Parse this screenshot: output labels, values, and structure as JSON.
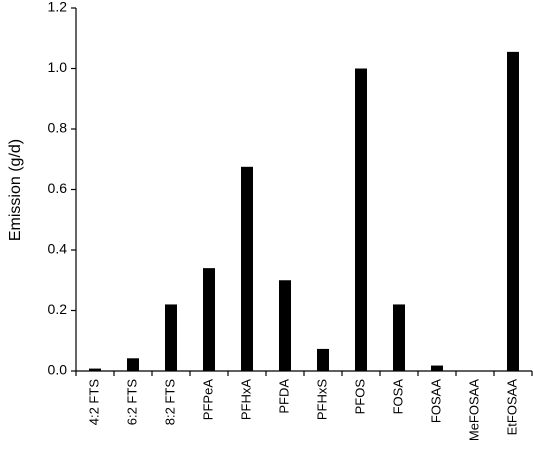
{
  "chart_data": {
    "type": "bar",
    "y_label": "Emission (g/d)",
    "categories": [
      "4:2 FTS",
      "6:2 FTS",
      "8:2 FTS",
      "PFPeA",
      "PFHxA",
      "PFDA",
      "PFHxS",
      "PFOS",
      "FOSA",
      "FOSAA",
      "MeFOSAA",
      "EtFOSAA"
    ],
    "values": [
      0.008,
      0.042,
      0.22,
      0.34,
      0.675,
      0.3,
      0.073,
      1.0,
      0.22,
      0.018,
      0,
      1.055
    ],
    "color": "#000000",
    "ylim": [
      0,
      1.2
    ],
    "yticks": [
      {
        "value": 0,
        "label": "0.0"
      },
      0.2,
      0.4,
      0.6,
      0.8,
      {
        "value": 1,
        "label": "1.0"
      },
      1.2
    ],
    "grid": false
  }
}
